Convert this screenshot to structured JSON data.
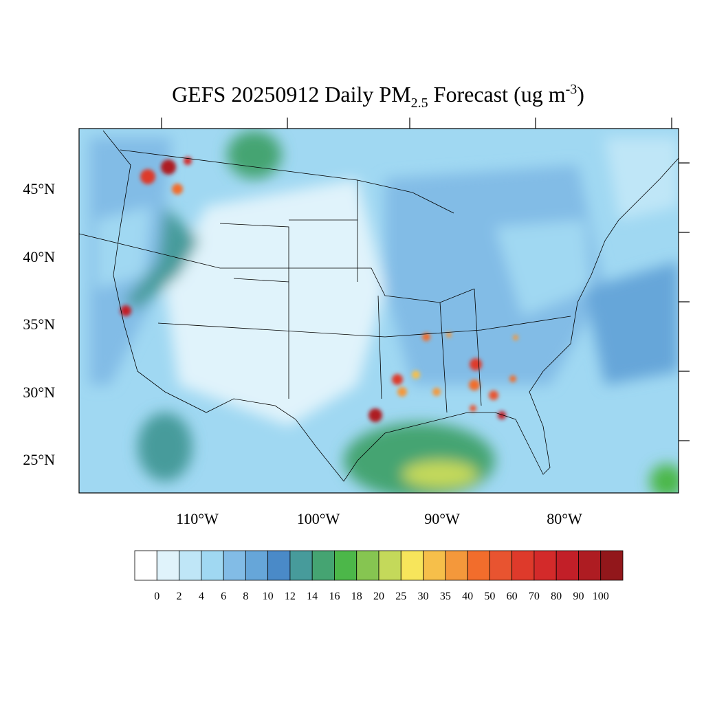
{
  "title": {
    "main": "GEFS 20250912 Daily PM",
    "sub": "2.5",
    "rest": " Forecast (ug m",
    "sup": "-3",
    "end": ")"
  },
  "lat_labels": [
    "45°N",
    "40°N",
    "35°N",
    "30°N",
    "25°N"
  ],
  "lon_labels": [
    "110°W",
    "100°W",
    "90°W",
    "80°W"
  ],
  "colorbar": {
    "levels": [
      0,
      2,
      4,
      6,
      8,
      10,
      12,
      14,
      16,
      18,
      20,
      25,
      30,
      35,
      40,
      50,
      60,
      70,
      80,
      90,
      100
    ],
    "colors": [
      "#ffffff",
      "#e0f3fb",
      "#bfe6f7",
      "#a0d8f2",
      "#82bce6",
      "#66a6d9",
      "#4a8ac8",
      "#479b9b",
      "#45a472",
      "#4cb749",
      "#86c551",
      "#c4d95a",
      "#f7e55b",
      "#f6bf4a",
      "#f4983b",
      "#f26d2c",
      "#e85430",
      "#de3a2b",
      "#d32a2a",
      "#c21f28",
      "#ae1c22",
      "#92171b"
    ]
  }
}
